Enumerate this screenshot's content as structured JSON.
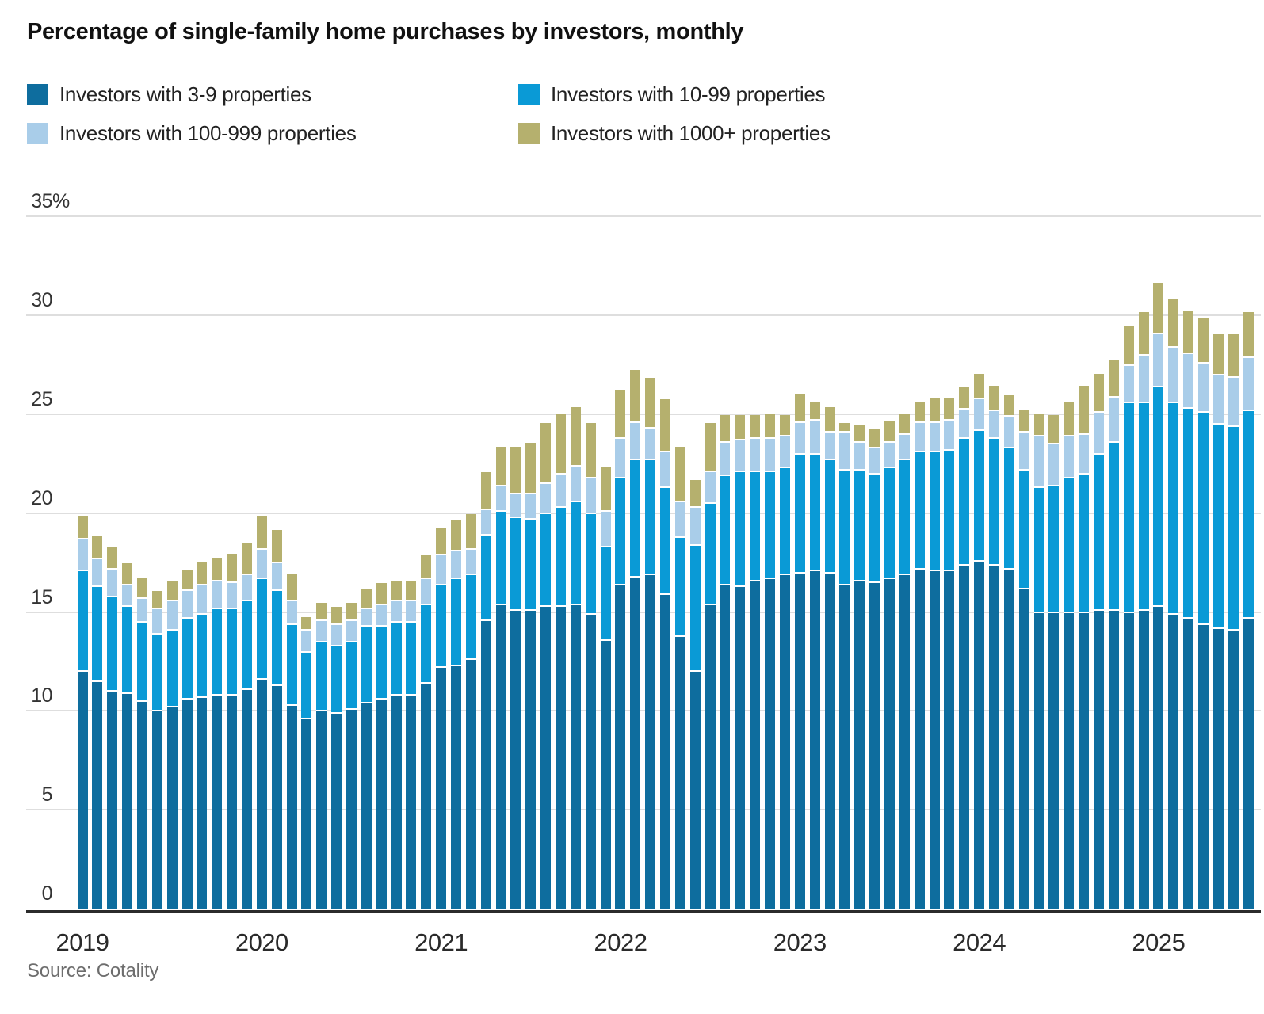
{
  "title": "Percentage of single-family home purchases by investors, monthly",
  "source": "Source: Cotality",
  "colors": {
    "dark_blue": "#0e6d9e",
    "bright_blue": "#0a9ad6",
    "light_blue": "#a9cde9",
    "olive": "#b5b06e",
    "gridline": "#dedede",
    "axis": "#2b2b2b"
  },
  "legend": {
    "items": [
      {
        "label": "Investors with 3-9 properties",
        "color": "#0e6d9e"
      },
      {
        "label": "Investors with 10-99 properties",
        "color": "#0a9ad6"
      },
      {
        "label": "Investors with 100-999 properties",
        "color": "#a9cde9"
      },
      {
        "label": "Investors with 1000+ properties",
        "color": "#b5b06e"
      }
    ]
  },
  "chart_data": {
    "type": "bar",
    "stacked": true,
    "title": "Percentage of single-family home purchases by investors, monthly",
    "xlabel": "",
    "ylabel": "",
    "ylim": [
      0,
      35
    ],
    "yticks": [
      0,
      5,
      10,
      15,
      20,
      25,
      30,
      35
    ],
    "ytick_top_suffix": "%",
    "grid": "horizontal",
    "legend_position": "top",
    "x_year_labels": [
      "2019",
      "2020",
      "2021",
      "2022",
      "2023",
      "2024",
      "2025"
    ],
    "categories": [
      "Jan 2019",
      "Feb 2019",
      "Mar 2019",
      "Apr 2019",
      "May 2019",
      "Jun 2019",
      "Jul 2019",
      "Aug 2019",
      "Sep 2019",
      "Oct 2019",
      "Nov 2019",
      "Dec 2019",
      "Jan 2020",
      "Feb 2020",
      "Mar 2020",
      "Apr 2020",
      "May 2020",
      "Jun 2020",
      "Jul 2020",
      "Aug 2020",
      "Sep 2020",
      "Oct 2020",
      "Nov 2020",
      "Dec 2020",
      "Jan 2021",
      "Feb 2021",
      "Mar 2021",
      "Apr 2021",
      "May 2021",
      "Jun 2021",
      "Jul 2021",
      "Aug 2021",
      "Sep 2021",
      "Oct 2021",
      "Nov 2021",
      "Dec 2021",
      "Jan 2022",
      "Feb 2022",
      "Mar 2022",
      "Apr 2022",
      "May 2022",
      "Jun 2022",
      "Jul 2022",
      "Aug 2022",
      "Sep 2022",
      "Oct 2022",
      "Nov 2022",
      "Dec 2022",
      "Jan 2023",
      "Feb 2023",
      "Mar 2023",
      "Apr 2023",
      "May 2023",
      "Jun 2023",
      "Jul 2023",
      "Aug 2023",
      "Sep 2023",
      "Oct 2023",
      "Nov 2023",
      "Dec 2023",
      "Jan 2024",
      "Feb 2024",
      "Mar 2024",
      "Apr 2024",
      "May 2024",
      "Jun 2024",
      "Jul 2024",
      "Aug 2024",
      "Sep 2024",
      "Oct 2024",
      "Nov 2024",
      "Dec 2024",
      "Jan 2025",
      "Feb 2025",
      "Mar 2025",
      "Apr 2025",
      "May 2025",
      "Jun 2025",
      "Jul 2025"
    ],
    "series": [
      {
        "name": "Investors with 3-9 properties",
        "color": "#0e6d9e",
        "values": [
          12.0,
          11.5,
          11.0,
          10.9,
          10.5,
          10.0,
          10.2,
          10.6,
          10.7,
          10.8,
          10.8,
          11.1,
          11.6,
          11.3,
          10.3,
          9.6,
          10.0,
          9.9,
          10.1,
          10.4,
          10.6,
          10.8,
          10.8,
          11.4,
          12.2,
          12.3,
          12.6,
          14.6,
          15.4,
          15.1,
          15.1,
          15.3,
          15.3,
          15.4,
          14.9,
          13.6,
          16.4,
          16.8,
          16.9,
          15.9,
          13.8,
          12.0,
          15.4,
          16.4,
          16.3,
          16.6,
          16.7,
          16.9,
          17.0,
          17.1,
          17.0,
          16.4,
          16.6,
          16.5,
          16.7,
          16.9,
          17.2,
          17.1,
          17.1,
          17.4,
          17.6,
          17.4,
          17.2,
          16.2,
          15.0,
          15.0,
          15.0,
          15.0,
          15.1,
          15.1,
          15.0,
          15.1,
          15.3,
          14.9,
          14.7,
          14.4,
          14.2,
          14.1,
          14.7
        ]
      },
      {
        "name": "Investors with 10-99 properties",
        "color": "#0a9ad6",
        "values": [
          5.1,
          4.8,
          4.8,
          4.4,
          4.0,
          3.9,
          3.9,
          4.1,
          4.2,
          4.4,
          4.4,
          4.5,
          5.1,
          4.8,
          4.1,
          3.4,
          3.5,
          3.4,
          3.4,
          3.9,
          3.7,
          3.7,
          3.7,
          4.0,
          4.2,
          4.4,
          4.3,
          4.3,
          4.7,
          4.7,
          4.6,
          4.7,
          5.0,
          5.2,
          5.1,
          4.7,
          5.4,
          5.9,
          5.8,
          5.4,
          5.0,
          6.4,
          5.1,
          5.5,
          5.8,
          5.5,
          5.4,
          5.4,
          6.0,
          5.9,
          5.7,
          5.8,
          5.6,
          5.5,
          5.6,
          5.8,
          5.9,
          6.0,
          6.1,
          6.4,
          6.6,
          6.4,
          6.1,
          6.0,
          6.3,
          6.4,
          6.8,
          7.0,
          7.9,
          8.5,
          10.6,
          10.5,
          11.1,
          10.7,
          10.6,
          10.7,
          10.3,
          10.3,
          10.5
        ]
      },
      {
        "name": "Investors with 100-999 properties",
        "color": "#a9cde9",
        "values": [
          1.6,
          1.4,
          1.4,
          1.1,
          1.2,
          1.3,
          1.5,
          1.4,
          1.5,
          1.4,
          1.3,
          1.3,
          1.5,
          1.4,
          1.2,
          1.1,
          1.1,
          1.1,
          1.1,
          0.9,
          1.1,
          1.1,
          1.1,
          1.3,
          1.5,
          1.4,
          1.3,
          1.3,
          1.3,
          1.2,
          1.3,
          1.5,
          1.7,
          1.8,
          1.8,
          1.8,
          2.0,
          1.9,
          1.6,
          1.8,
          1.8,
          1.9,
          1.6,
          1.7,
          1.6,
          1.7,
          1.7,
          1.6,
          1.6,
          1.7,
          1.4,
          1.9,
          1.4,
          1.3,
          1.3,
          1.3,
          1.5,
          1.5,
          1.5,
          1.5,
          1.6,
          1.4,
          1.6,
          1.9,
          2.6,
          2.1,
          2.1,
          2.0,
          2.1,
          2.3,
          1.9,
          2.4,
          2.7,
          2.8,
          2.8,
          2.5,
          2.5,
          2.5,
          2.7
        ]
      },
      {
        "name": "Investors with 1000+ properties",
        "color": "#b5b06e",
        "values": [
          1.2,
          1.2,
          1.1,
          1.1,
          1.1,
          0.9,
          1.0,
          1.1,
          1.2,
          1.2,
          1.5,
          1.6,
          1.7,
          1.7,
          1.4,
          0.7,
          0.9,
          0.9,
          0.9,
          1.0,
          1.1,
          1.0,
          1.0,
          1.2,
          1.4,
          1.6,
          1.8,
          1.9,
          2.0,
          2.4,
          2.6,
          3.1,
          3.1,
          3.0,
          2.8,
          2.3,
          2.5,
          2.7,
          2.6,
          2.7,
          2.8,
          1.4,
          2.5,
          1.4,
          1.3,
          1.2,
          1.3,
          1.1,
          1.5,
          1.0,
          1.3,
          0.5,
          0.9,
          1.0,
          1.1,
          1.1,
          1.1,
          1.3,
          1.2,
          1.1,
          1.3,
          1.3,
          1.1,
          1.2,
          1.2,
          1.5,
          1.8,
          2.5,
          2.0,
          1.9,
          2.0,
          2.2,
          2.6,
          2.5,
          2.2,
          2.3,
          2.1,
          2.2,
          2.3
        ]
      }
    ]
  }
}
